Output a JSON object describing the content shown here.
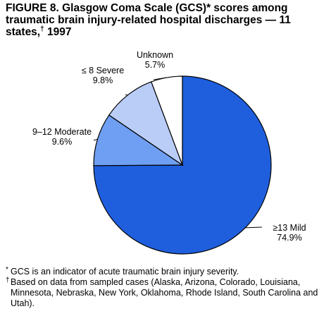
{
  "figure": {
    "title": "FIGURE 8. Glasgow Coma Scale (GCS)* scores among traumatic brain injury-related hospital discharges — 11 states,",
    "title_dagger": "†",
    "title_year": " 1997"
  },
  "chart_data": {
    "type": "pie",
    "title": "FIGURE 8. Glasgow Coma Scale (GCS)* scores among traumatic brain injury-related hospital discharges — 11 states,† 1997",
    "slices": [
      {
        "label": "≥13 Mild",
        "value": 74.9,
        "display": "74.9%",
        "color": "#1f5fdd"
      },
      {
        "label": "9–12 Moderate",
        "value": 9.6,
        "display": "9.6%",
        "color": "#6f9ff2"
      },
      {
        "label": "≤ 8 Severe",
        "value": 9.8,
        "display": "9.8%",
        "color": "#b9cdf7"
      },
      {
        "label": "Unknown",
        "value": 5.7,
        "display": "5.7%",
        "color": "#ffffff"
      }
    ],
    "start_angle": "12 o'clock",
    "direction": "clockwise",
    "outline_color": "#000000"
  },
  "footnotes": [
    {
      "marker": "*",
      "text": "GCS is an indicator of acute traumatic brain injury severity."
    },
    {
      "marker": "†",
      "text": "Based on data from sampled cases (Alaska, Arizona, Colorado, Louisiana, Minnesota, Nebraska, New York, Oklahoma, Rhode Island, South Carolina and Utah)."
    }
  ]
}
